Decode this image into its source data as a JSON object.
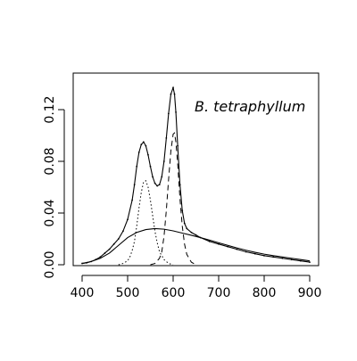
{
  "chart_data": {
    "type": "line",
    "title": "",
    "xlabel": "",
    "ylabel": "",
    "xlim": [
      400,
      900
    ],
    "ylim": [
      0,
      0.14
    ],
    "x_ticks": [
      400,
      500,
      600,
      700,
      800,
      900
    ],
    "y_ticks": [
      0.0,
      0.04,
      0.08,
      0.12
    ],
    "x_tick_labels": [
      "400",
      "500",
      "600",
      "700",
      "800",
      "900"
    ],
    "y_tick_labels": [
      "0.00",
      "0.04",
      "0.08",
      "0.12"
    ],
    "grid": false,
    "annotations": [
      {
        "text": "B. tetraphyllum"
      }
    ],
    "series": [
      {
        "style": "points",
        "x": [
          400,
          410,
          420,
          430,
          440,
          450,
          460,
          470,
          480,
          490,
          500,
          510,
          515,
          520,
          525,
          530,
          535,
          540,
          545,
          550,
          555,
          560,
          565,
          570,
          575,
          580,
          585,
          590,
          595,
          600,
          603,
          606,
          610,
          615,
          620,
          625,
          630,
          640,
          650,
          660,
          680,
          700,
          720,
          740,
          760,
          780,
          800,
          820,
          840,
          860,
          880,
          900
        ],
        "values": [
          0.001,
          0.0015,
          0.0025,
          0.004,
          0.006,
          0.009,
          0.012,
          0.016,
          0.02,
          0.026,
          0.035,
          0.05,
          0.062,
          0.076,
          0.087,
          0.093,
          0.095,
          0.092,
          0.085,
          0.076,
          0.068,
          0.063,
          0.061,
          0.062,
          0.068,
          0.08,
          0.098,
          0.117,
          0.132,
          0.137,
          0.132,
          0.118,
          0.092,
          0.062,
          0.042,
          0.032,
          0.028,
          0.025,
          0.023,
          0.021,
          0.018,
          0.016,
          0.014,
          0.012,
          0.01,
          0.0085,
          0.007,
          0.006,
          0.005,
          0.004,
          0.003,
          0.002
        ]
      },
      {
        "style": "solid",
        "x": [
          400,
          410,
          420,
          430,
          440,
          450,
          460,
          470,
          480,
          490,
          500,
          510,
          515,
          520,
          525,
          530,
          535,
          540,
          545,
          550,
          555,
          560,
          565,
          570,
          575,
          580,
          585,
          590,
          595,
          600,
          603,
          606,
          610,
          615,
          620,
          625,
          630,
          640,
          650,
          660,
          680,
          700,
          720,
          740,
          760,
          780,
          800,
          820,
          840,
          860,
          880,
          900
        ],
        "values": [
          0.001,
          0.0015,
          0.0025,
          0.004,
          0.006,
          0.009,
          0.012,
          0.016,
          0.02,
          0.026,
          0.035,
          0.05,
          0.062,
          0.076,
          0.087,
          0.093,
          0.095,
          0.092,
          0.085,
          0.076,
          0.068,
          0.063,
          0.061,
          0.062,
          0.068,
          0.08,
          0.098,
          0.117,
          0.132,
          0.137,
          0.132,
          0.118,
          0.092,
          0.062,
          0.042,
          0.032,
          0.028,
          0.025,
          0.023,
          0.021,
          0.018,
          0.016,
          0.014,
          0.012,
          0.01,
          0.0085,
          0.007,
          0.006,
          0.005,
          0.004,
          0.003,
          0.002
        ]
      },
      {
        "style": "solid",
        "x": [
          400,
          420,
          440,
          460,
          480,
          500,
          520,
          540,
          560,
          580,
          600,
          620,
          640,
          660,
          680,
          700,
          720,
          740,
          760,
          780,
          800,
          820,
          840,
          860,
          880,
          900
        ],
        "values": [
          0.001,
          0.0025,
          0.005,
          0.009,
          0.015,
          0.021,
          0.025,
          0.0272,
          0.028,
          0.0275,
          0.0262,
          0.0245,
          0.0228,
          0.021,
          0.019,
          0.017,
          0.015,
          0.013,
          0.0112,
          0.0096,
          0.0082,
          0.007,
          0.006,
          0.005,
          0.004,
          0.003
        ]
      },
      {
        "style": "dotted",
        "x": [
          480,
          490,
          500,
          505,
          510,
          515,
          520,
          525,
          530,
          535,
          540,
          545,
          550,
          555,
          560,
          565,
          570,
          580,
          590,
          600
        ],
        "values": [
          0.0,
          0.001,
          0.003,
          0.006,
          0.011,
          0.018,
          0.03,
          0.044,
          0.056,
          0.064,
          0.065,
          0.06,
          0.05,
          0.038,
          0.026,
          0.017,
          0.01,
          0.004,
          0.001,
          0.0
        ]
      },
      {
        "style": "dashed",
        "x": [
          550,
          560,
          570,
          575,
          580,
          585,
          590,
          595,
          600,
          603,
          606,
          610,
          615,
          620,
          625,
          630,
          640,
          650
        ],
        "values": [
          0.0,
          0.001,
          0.005,
          0.01,
          0.022,
          0.042,
          0.066,
          0.088,
          0.101,
          0.102,
          0.095,
          0.078,
          0.051,
          0.03,
          0.016,
          0.008,
          0.002,
          0.0
        ]
      }
    ]
  }
}
